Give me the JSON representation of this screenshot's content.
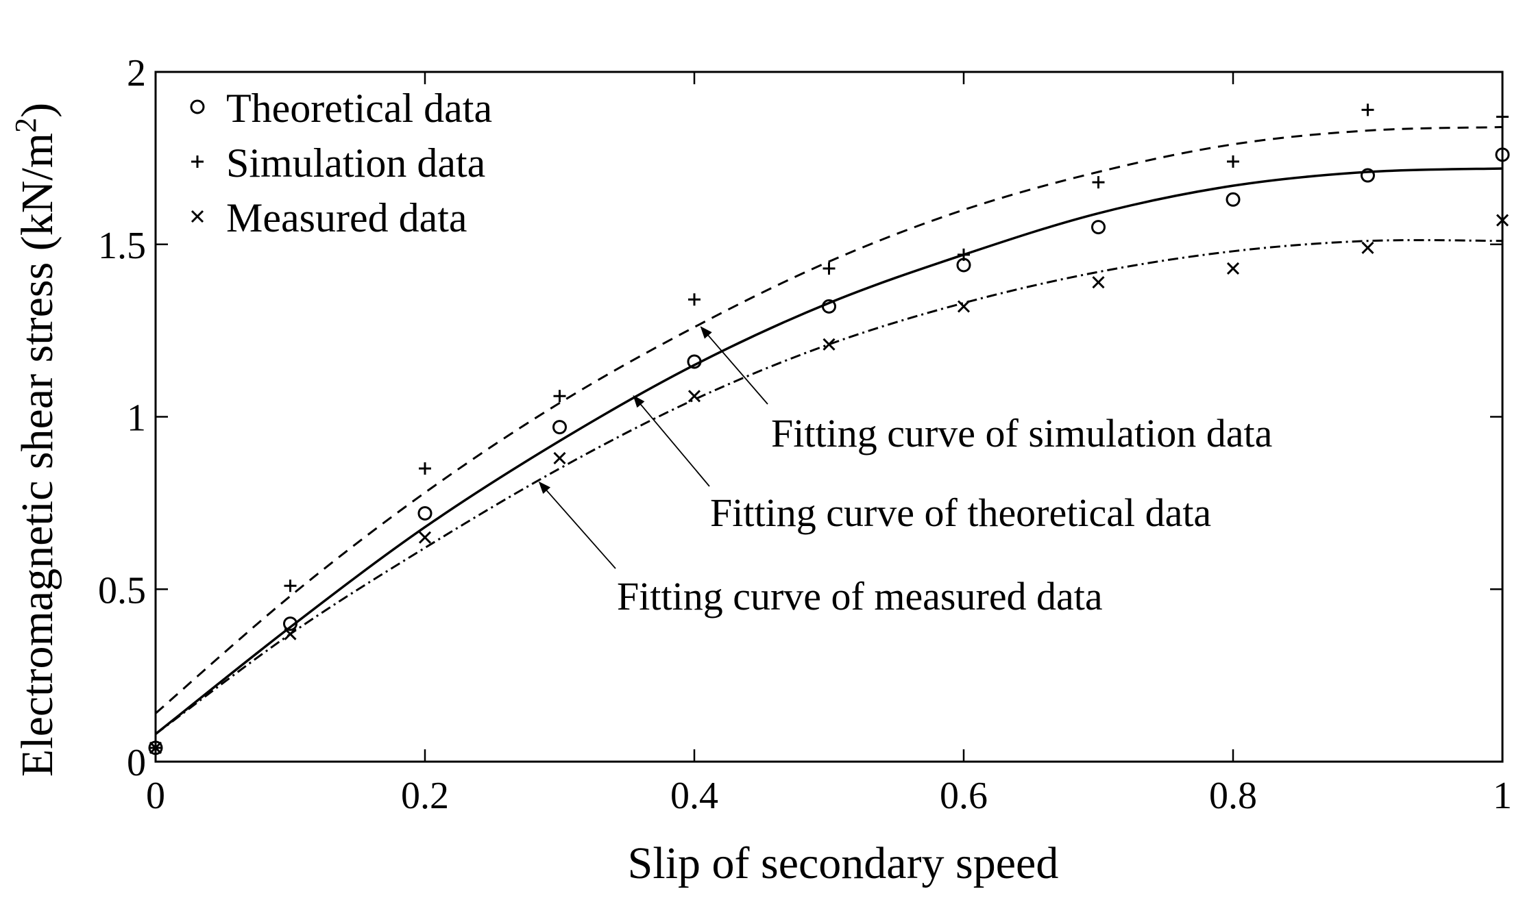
{
  "chart_data": {
    "type": "scatter",
    "title": "",
    "xlabel": "Slip of secondary speed",
    "ylabel_main": "Electromagnetic shear stress (kN/m",
    "ylabel_sup": "2",
    "ylabel_close": ")",
    "xlim": [
      0,
      1
    ],
    "ylim": [
      0,
      2
    ],
    "xticks": [
      0,
      0.2,
      0.4,
      0.6,
      0.8,
      1
    ],
    "xtick_labels": [
      "0",
      "0.2",
      "0.4",
      "0.6",
      "0.8",
      "1"
    ],
    "yticks": [
      0,
      0.5,
      1,
      1.5,
      2
    ],
    "ytick_labels": [
      "0",
      "0.5",
      "1",
      "1.5",
      "2"
    ],
    "grid": false,
    "legend_position": "top-left",
    "series": [
      {
        "name": "Theoretical data",
        "marker": "circle",
        "x": [
          0,
          0.1,
          0.2,
          0.3,
          0.4,
          0.5,
          0.6,
          0.7,
          0.8,
          0.9,
          1.0
        ],
        "values": [
          0.04,
          0.4,
          0.72,
          0.97,
          1.16,
          1.32,
          1.44,
          1.55,
          1.63,
          1.7,
          1.76
        ]
      },
      {
        "name": "Simulation data",
        "marker": "plus",
        "x": [
          0,
          0.1,
          0.2,
          0.3,
          0.4,
          0.5,
          0.6,
          0.7,
          0.8,
          0.9,
          1.0
        ],
        "values": [
          0.04,
          0.51,
          0.85,
          1.06,
          1.34,
          1.43,
          1.47,
          1.68,
          1.74,
          1.89,
          1.87
        ]
      },
      {
        "name": "Measured data",
        "marker": "cross",
        "x": [
          0,
          0.1,
          0.2,
          0.3,
          0.4,
          0.5,
          0.6,
          0.7,
          0.8,
          0.9,
          1.0
        ],
        "values": [
          0.04,
          0.37,
          0.65,
          0.88,
          1.06,
          1.21,
          1.32,
          1.39,
          1.43,
          1.49,
          1.57
        ]
      }
    ],
    "fit_curves": [
      {
        "name": "Fitting curve of theoretical data",
        "style": "solid",
        "x": [
          0,
          0.1,
          0.2,
          0.3,
          0.4,
          0.5,
          0.6,
          0.7,
          0.8,
          0.9,
          1.0
        ],
        "values": [
          0.08,
          0.39,
          0.68,
          0.93,
          1.15,
          1.33,
          1.47,
          1.59,
          1.67,
          1.71,
          1.72
        ]
      },
      {
        "name": "Fitting curve of simulation data",
        "style": "dashed",
        "x": [
          0,
          0.1,
          0.2,
          0.3,
          0.4,
          0.5,
          0.6,
          0.7,
          0.8,
          0.9,
          1.0
        ],
        "values": [
          0.14,
          0.48,
          0.78,
          1.04,
          1.26,
          1.45,
          1.6,
          1.71,
          1.79,
          1.83,
          1.84
        ]
      },
      {
        "name": "Fitting curve of measured data",
        "style": "dashdot",
        "x": [
          0,
          0.1,
          0.2,
          0.3,
          0.4,
          0.5,
          0.6,
          0.7,
          0.8,
          0.9,
          1.0
        ],
        "values": [
          0.08,
          0.37,
          0.62,
          0.85,
          1.05,
          1.21,
          1.33,
          1.42,
          1.48,
          1.51,
          1.51
        ]
      }
    ],
    "annotations": [
      {
        "text": "Fitting curve of simulation data",
        "target_x": 0.405,
        "target_y": 1.26
      },
      {
        "text": "Fitting curve of theoretical data",
        "target_x": 0.355,
        "target_y": 1.06
      },
      {
        "text": "Fitting curve of measured data",
        "target_x": 0.285,
        "target_y": 0.81
      }
    ]
  }
}
